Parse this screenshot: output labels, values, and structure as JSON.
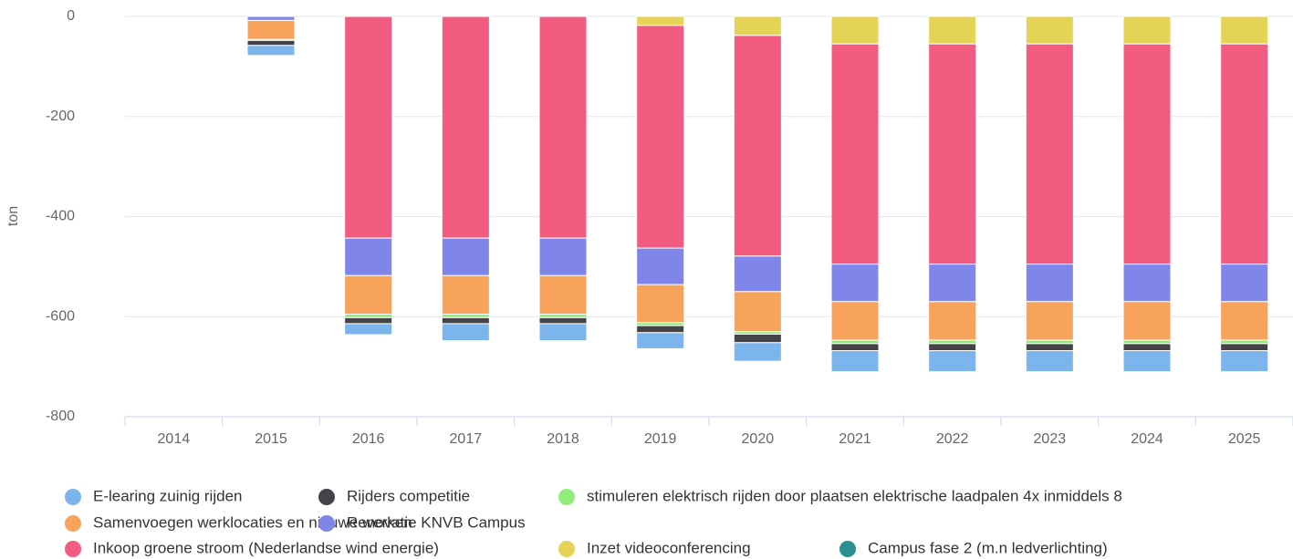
{
  "chart_data": {
    "type": "bar",
    "stacked": true,
    "y_label": "ton",
    "categories": [
      "2014",
      "2015",
      "2016",
      "2017",
      "2018",
      "2019",
      "2020",
      "2021",
      "2022",
      "2023",
      "2024",
      "2025"
    ],
    "ylim": [
      -800,
      0
    ],
    "yticks": [
      -800,
      -600,
      -400,
      -200,
      0
    ],
    "grid": true,
    "series": [
      {
        "name": "E-learing zuinig rijden",
        "color": "#7cb5ec",
        "values": [
          0,
          -20,
          -22,
          -34,
          -34,
          -32,
          -37,
          -42,
          -42,
          -42,
          -42,
          -42
        ]
      },
      {
        "name": "Rijders competitie",
        "color": "#434348",
        "values": [
          0,
          -10,
          -12,
          -12,
          -12,
          -14,
          -17,
          -14,
          -14,
          -14,
          -14,
          -14
        ]
      },
      {
        "name": "stimuleren elektrisch rijden door plaatsen elektrische laadpalen 4x inmiddels 8",
        "color": "#90ed7d",
        "values": [
          0,
          -2,
          -7,
          -7,
          -7,
          -6,
          -5,
          -7,
          -7,
          -7,
          -7,
          -7
        ]
      },
      {
        "name": "Samenvoegen werklocaties en nieuwe werken",
        "color": "#f7a35c",
        "values": [
          0,
          -38,
          -77,
          -77,
          -77,
          -76,
          -80,
          -77,
          -77,
          -77,
          -77,
          -77
        ]
      },
      {
        "name": "Renovatie KNVB Campus",
        "color": "#8085e9",
        "values": [
          0,
          -8,
          -75,
          -75,
          -75,
          -73,
          -71,
          -75,
          -75,
          -75,
          -75,
          -75
        ]
      },
      {
        "name": "Inkoop groene stroom (Nederlandse wind energie)",
        "color": "#f15c80",
        "values": [
          0,
          0,
          -443,
          -443,
          -443,
          -445,
          -441,
          -440,
          -440,
          -440,
          -440,
          -440
        ]
      },
      {
        "name": "Inzet videoconferencing",
        "color": "#e4d354",
        "values": [
          0,
          0,
          0,
          0,
          0,
          -18,
          -38,
          -55,
          -55,
          -55,
          -55,
          -55
        ]
      },
      {
        "name": "Campus fase 2 (m.n ledverlichting)",
        "color": "#2b908f",
        "values": [
          0,
          0,
          0,
          0,
          0,
          0,
          0,
          0,
          0,
          0,
          0,
          0
        ]
      }
    ]
  }
}
